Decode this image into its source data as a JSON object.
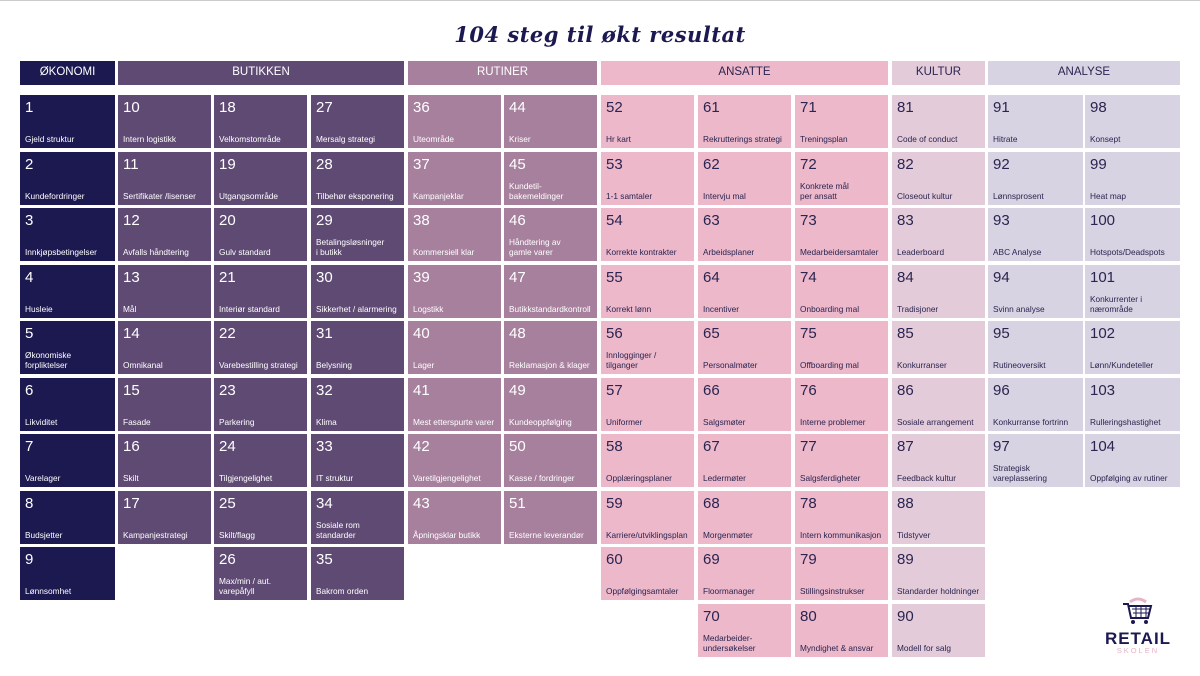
{
  "title": "104 steg til økt resultat",
  "logo": {
    "line1": "RETAIL",
    "line2": "SKOLEN"
  },
  "sections": [
    {
      "name": "ØKONOMI",
      "color": "#1c1850",
      "cell_color": "#1c1850",
      "text_color": "#ffffff",
      "columns": [
        [
          {
            "n": "1",
            "label": "Gjeld struktur"
          },
          {
            "n": "2",
            "label": "Kundefordringer"
          },
          {
            "n": "3",
            "label": "Innkjøpsbetingelser"
          },
          {
            "n": "4",
            "label": "Husleie"
          },
          {
            "n": "5",
            "label": "Økonomiske\nforpliktelser"
          },
          {
            "n": "6",
            "label": "Likviditet"
          },
          {
            "n": "7",
            "label": "Varelager"
          },
          {
            "n": "8",
            "label": "Budsjetter"
          },
          {
            "n": "9",
            "label": "Lønnsomhet"
          }
        ]
      ]
    },
    {
      "name": "BUTIKKEN",
      "color": "#5f4a73",
      "cell_color": "#5f4a73",
      "text_color": "#ffffff",
      "columns": [
        [
          {
            "n": "10",
            "label": "Intern logistikk"
          },
          {
            "n": "11",
            "label": "Sertifikater /lisenser"
          },
          {
            "n": "12",
            "label": "Avfalls håndtering"
          },
          {
            "n": "13",
            "label": "Mål"
          },
          {
            "n": "14",
            "label": "Omnikanal"
          },
          {
            "n": "15",
            "label": "Fasade"
          },
          {
            "n": "16",
            "label": "Skilt"
          },
          {
            "n": "17",
            "label": "Kampanjestrategi"
          }
        ],
        [
          {
            "n": "18",
            "label": "Velkomstområde"
          },
          {
            "n": "19",
            "label": "Utgangsområde"
          },
          {
            "n": "20",
            "label": "Gulv standard"
          },
          {
            "n": "21",
            "label": "Interiør standard"
          },
          {
            "n": "22",
            "label": "Varebestilling strategi"
          },
          {
            "n": "23",
            "label": "Parkering"
          },
          {
            "n": "24",
            "label": "Tilgjengelighet"
          },
          {
            "n": "25",
            "label": "Skilt/flagg"
          },
          {
            "n": "26",
            "label": "Max/min / aut.\nvarepåfyll"
          }
        ],
        [
          {
            "n": "27",
            "label": "Mersalg strategi"
          },
          {
            "n": "28",
            "label": "Tilbehør eksponering"
          },
          {
            "n": "29",
            "label": "Betalingsløsninger\ni butikk"
          },
          {
            "n": "30",
            "label": "Sikkerhet / alarmering"
          },
          {
            "n": "31",
            "label": "Belysning"
          },
          {
            "n": "32",
            "label": "Klima"
          },
          {
            "n": "33",
            "label": "IT struktur"
          },
          {
            "n": "34",
            "label": "Sosiale rom standarder"
          },
          {
            "n": "35",
            "label": "Bakrom orden"
          }
        ]
      ]
    },
    {
      "name": "RUTINER",
      "color": "#a6809d",
      "cell_color": "#a6809d",
      "text_color": "#ffffff",
      "columns": [
        [
          {
            "n": "36",
            "label": "Uteområde"
          },
          {
            "n": "37",
            "label": "Kampanjeklar"
          },
          {
            "n": "38",
            "label": "Kommersiell klar"
          },
          {
            "n": "39",
            "label": "Logstikk"
          },
          {
            "n": "40",
            "label": "Lager"
          },
          {
            "n": "41",
            "label": "Mest etterspurte varer"
          },
          {
            "n": "42",
            "label": "Varetilgjengelighet"
          },
          {
            "n": "43",
            "label": "Åpningsklar butikk"
          }
        ],
        [
          {
            "n": "44",
            "label": "Kriser"
          },
          {
            "n": "45",
            "label": "Kundetil-\nbakemeldinger"
          },
          {
            "n": "46",
            "label": "Håndtering av\ngamle varer"
          },
          {
            "n": "47",
            "label": "Butikkstandardkontroll"
          },
          {
            "n": "48",
            "label": "Reklamasjon & klager"
          },
          {
            "n": "49",
            "label": "Kundeoppfølging"
          },
          {
            "n": "50",
            "label": "Kasse / fordringer"
          },
          {
            "n": "51",
            "label": "Eksterne leverandør"
          }
        ]
      ]
    },
    {
      "name": "ANSATTE",
      "color": "#ecb8ca",
      "cell_color": "#ecb8ca",
      "text_color": "#2a2450",
      "columns": [
        [
          {
            "n": "52",
            "label": "Hr kart"
          },
          {
            "n": "53",
            "label": "1-1 samtaler"
          },
          {
            "n": "54",
            "label": "Korrekte kontrakter"
          },
          {
            "n": "55",
            "label": "Korrekt lønn"
          },
          {
            "n": "56",
            "label": "Innlogginger /\ntilganger"
          },
          {
            "n": "57",
            "label": "Uniformer"
          },
          {
            "n": "58",
            "label": "Opplæringsplaner"
          },
          {
            "n": "59",
            "label": "Karriere/utviklingsplan"
          },
          {
            "n": "60",
            "label": "Oppfølgingsamtaler"
          }
        ],
        [
          {
            "n": "61",
            "label": "Rekrutterings strategi"
          },
          {
            "n": "62",
            "label": "Intervju mal"
          },
          {
            "n": "63",
            "label": "Arbeidsplaner"
          },
          {
            "n": "64",
            "label": "Incentiver"
          },
          {
            "n": "65",
            "label": "Personalmøter"
          },
          {
            "n": "66",
            "label": "Salgsmøter"
          },
          {
            "n": "67",
            "label": "Ledermøter"
          },
          {
            "n": "68",
            "label": "Morgenmøter"
          },
          {
            "n": "69",
            "label": "Floormanager"
          },
          {
            "n": "70",
            "label": "Medarbeider-\nundersøkelser"
          }
        ],
        [
          {
            "n": "71",
            "label": "Treningsplan"
          },
          {
            "n": "72",
            "label": "Konkrete mål\nper ansatt"
          },
          {
            "n": "73",
            "label": "Medarbeidersamtaler"
          },
          {
            "n": "74",
            "label": "Onboarding mal"
          },
          {
            "n": "75",
            "label": "Offboarding mal"
          },
          {
            "n": "76",
            "label": "Interne problemer"
          },
          {
            "n": "77",
            "label": "Salgsferdigheter"
          },
          {
            "n": "78",
            "label": "Intern kommunikasjon"
          },
          {
            "n": "79",
            "label": "Stillingsinstrukser"
          },
          {
            "n": "80",
            "label": "Myndighet & ansvar"
          }
        ]
      ]
    },
    {
      "name": "KULTUR",
      "color": "#e3cbd9",
      "cell_color": "#e3cbd9",
      "text_color": "#2a2450",
      "columns": [
        [
          {
            "n": "81",
            "label": "Code of conduct"
          },
          {
            "n": "82",
            "label": "Closeout kultur"
          },
          {
            "n": "83",
            "label": "Leaderboard"
          },
          {
            "n": "84",
            "label": "Tradisjoner"
          },
          {
            "n": "85",
            "label": "Konkurranser"
          },
          {
            "n": "86",
            "label": "Sosiale arrangement"
          },
          {
            "n": "87",
            "label": "Feedback kultur"
          },
          {
            "n": "88",
            "label": "Tidstyver"
          },
          {
            "n": "89",
            "label": "Standarder holdninger"
          },
          {
            "n": "90",
            "label": "Modell for salg"
          }
        ]
      ]
    },
    {
      "name": "ANALYSE",
      "color": "#d8d3e2",
      "cell_color": "#d8d3e2",
      "text_color": "#2a2450",
      "columns": [
        [
          {
            "n": "91",
            "label": "Hitrate"
          },
          {
            "n": "92",
            "label": "Lønnsprosent"
          },
          {
            "n": "93",
            "label": "ABC Analyse"
          },
          {
            "n": "94",
            "label": "Svinn analyse"
          },
          {
            "n": "95",
            "label": "Rutineoversikt"
          },
          {
            "n": "96",
            "label": "Konkurranse fortrinn"
          },
          {
            "n": "97",
            "label": "Strategisk\nvareplassering"
          }
        ],
        [
          {
            "n": "98",
            "label": "Konsept"
          },
          {
            "n": "99",
            "label": "Heat map"
          },
          {
            "n": "100",
            "label": "Hotspots/Deadspots"
          },
          {
            "n": "101",
            "label": "Konkurrenter i\nnærområde"
          },
          {
            "n": "102",
            "label": "Lønn/Kundeteller"
          },
          {
            "n": "103",
            "label": "Rulleringshastighet"
          },
          {
            "n": "104",
            "label": "Oppfølging av rutiner"
          }
        ]
      ]
    }
  ]
}
